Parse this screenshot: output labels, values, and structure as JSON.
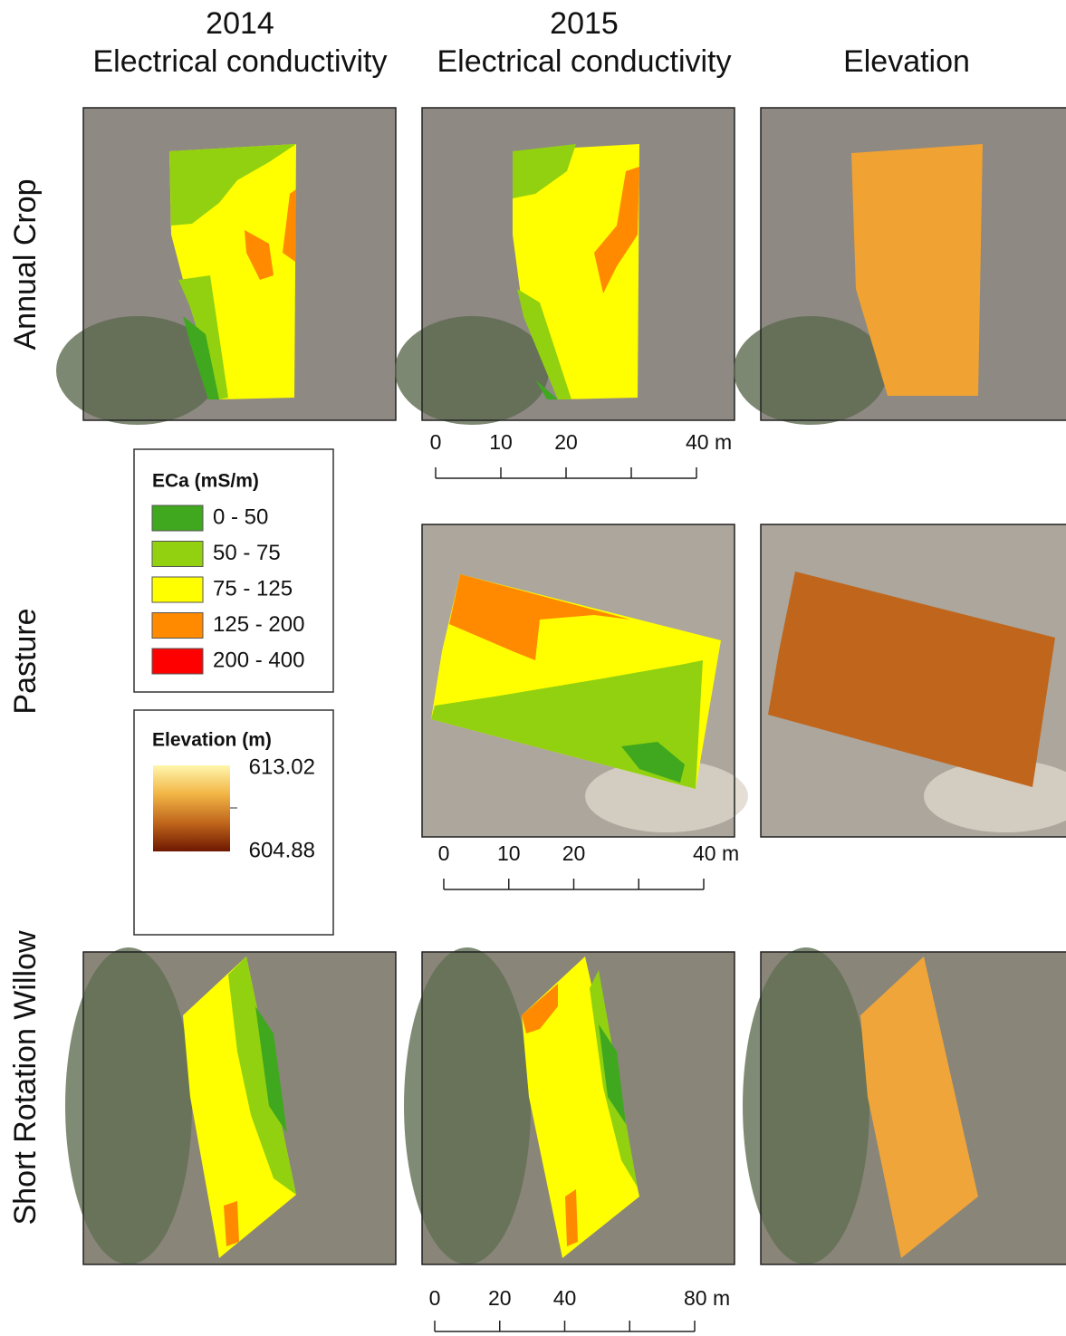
{
  "columns": [
    {
      "year": "2014",
      "title": "Electrical conductivity"
    },
    {
      "year": "2015",
      "title": "Electrical conductivity"
    },
    {
      "title": "Elevation"
    }
  ],
  "rows": [
    "Annual Crop",
    "Pasture",
    "Short Rotation Willow"
  ],
  "eca_legend": {
    "title": "ECa (mS/m)",
    "classes": [
      {
        "label": "0 - 50",
        "color": "#3fa81e"
      },
      {
        "label": "50 - 75",
        "color": "#92d10f"
      },
      {
        "label": "75 - 125",
        "color": "#ffff00"
      },
      {
        "label": "125 - 200",
        "color": "#ff8a00"
      },
      {
        "label": "200 - 400",
        "color": "#ff0000"
      }
    ]
  },
  "elevation_legend": {
    "title": "Elevation (m)",
    "max": 613.02,
    "min": 604.88,
    "colors": [
      "#fff6ac",
      "#f2b545",
      "#c0661c",
      "#6e1800"
    ]
  },
  "scale_bars": [
    {
      "lim": [
        0,
        40
      ],
      "ticks": [
        0,
        10,
        20,
        30,
        40
      ],
      "labels": [
        0,
        10,
        20,
        {
          "value": 40,
          "label": "40 m"
        }
      ]
    },
    {
      "lim": [
        0,
        40
      ],
      "ticks": [
        0,
        10,
        20,
        30,
        40
      ],
      "labels": [
        0,
        10,
        20,
        {
          "value": 40,
          "label": "40 m"
        }
      ]
    },
    {
      "lim": [
        0,
        80
      ],
      "ticks": [
        0,
        20,
        40,
        60,
        80
      ],
      "labels": [
        0,
        20,
        40,
        {
          "value": 80,
          "label": "80 m"
        }
      ]
    }
  ]
}
